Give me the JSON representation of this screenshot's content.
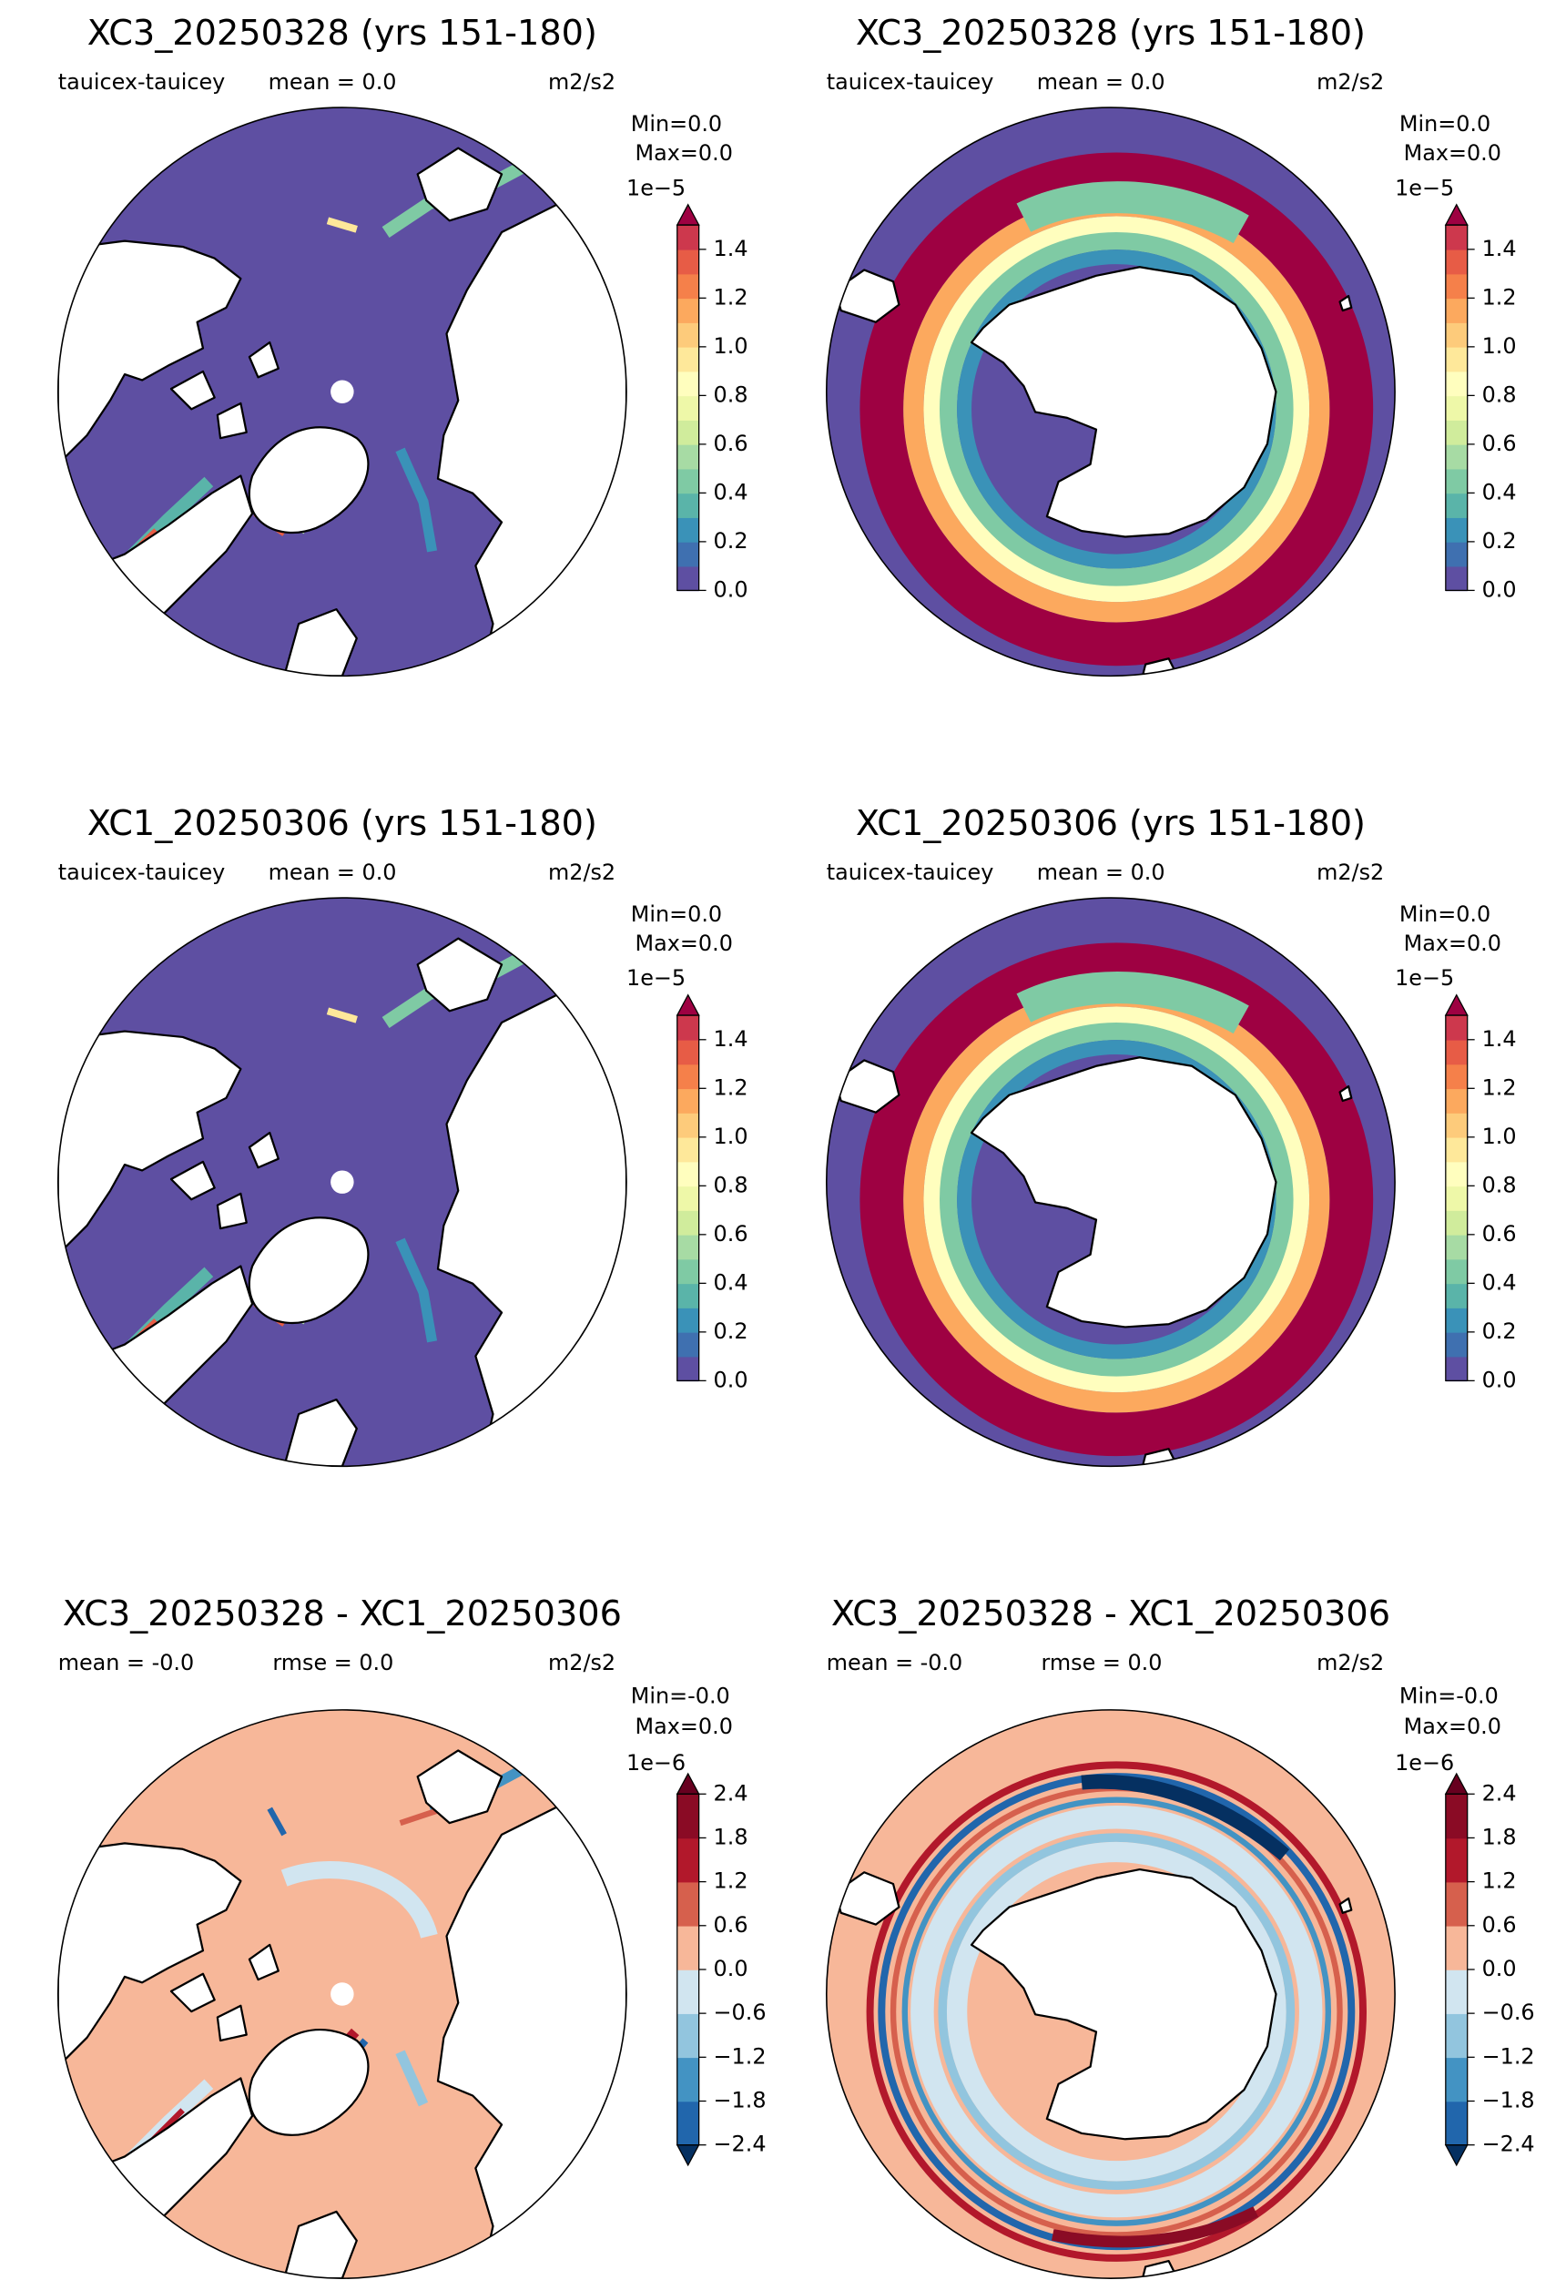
{
  "panels": [
    {
      "title": "XC3_20250328 (yrs 151-180)",
      "variable": "tauicex-tauicey",
      "stats": [
        "mean = 0.0"
      ],
      "units": "m2/s2",
      "min_text": "Min=0.0",
      "max_text": "Max=0.0",
      "map": "north",
      "style": "field",
      "colorbar": {
        "offset_label": "1e−5",
        "ylim": [
          0,
          1.5
        ],
        "yticks": [
          {
            "value": 0,
            "label": "0.0"
          },
          0.2,
          0.4,
          0.6,
          0.8,
          {
            "value": 1,
            "label": "1.0"
          },
          1.2,
          1.4
        ],
        "colors": [
          "#5e4fa2",
          "#3f70b0",
          "#3a92b8",
          "#5ab4a9",
          "#7fcaa4",
          "#a7dba4",
          "#d0ec9c",
          "#eef8a8",
          "#fffebe",
          "#fee89a",
          "#fdcb7b",
          "#fca95e",
          "#f5804a",
          "#e75c46",
          "#cd384d"
        ],
        "extend": "max",
        "over_color": "#9e0142"
      }
    },
    {
      "title": "XC3_20250328 (yrs 151-180)",
      "variable": "tauicex-tauicey",
      "stats": [
        "mean = 0.0"
      ],
      "units": "m2/s2",
      "min_text": "Min=0.0",
      "max_text": "Max=0.0",
      "map": "south",
      "style": "field",
      "colorbar": {
        "offset_label": "1e−5",
        "ylim": [
          0,
          1.5
        ],
        "yticks": [
          {
            "value": 0,
            "label": "0.0"
          },
          0.2,
          0.4,
          0.6,
          0.8,
          {
            "value": 1,
            "label": "1.0"
          },
          1.2,
          1.4
        ],
        "colors": [
          "#5e4fa2",
          "#3f70b0",
          "#3a92b8",
          "#5ab4a9",
          "#7fcaa4",
          "#a7dba4",
          "#d0ec9c",
          "#eef8a8",
          "#fffebe",
          "#fee89a",
          "#fdcb7b",
          "#fca95e",
          "#f5804a",
          "#e75c46",
          "#cd384d"
        ],
        "extend": "max",
        "over_color": "#9e0142"
      }
    },
    {
      "title": "XC1_20250306 (yrs 151-180)",
      "variable": "tauicex-tauicey",
      "stats": [
        "mean = 0.0"
      ],
      "units": "m2/s2",
      "min_text": "Min=0.0",
      "max_text": "Max=0.0",
      "map": "north",
      "style": "field",
      "colorbar": {
        "offset_label": "1e−5",
        "ylim": [
          0,
          1.5
        ],
        "yticks": [
          {
            "value": 0,
            "label": "0.0"
          },
          0.2,
          0.4,
          0.6,
          0.8,
          {
            "value": 1,
            "label": "1.0"
          },
          1.2,
          1.4
        ],
        "colors": [
          "#5e4fa2",
          "#3f70b0",
          "#3a92b8",
          "#5ab4a9",
          "#7fcaa4",
          "#a7dba4",
          "#d0ec9c",
          "#eef8a8",
          "#fffebe",
          "#fee89a",
          "#fdcb7b",
          "#fca95e",
          "#f5804a",
          "#e75c46",
          "#cd384d"
        ],
        "extend": "max",
        "over_color": "#9e0142"
      }
    },
    {
      "title": "XC1_20250306 (yrs 151-180)",
      "variable": "tauicex-tauicey",
      "stats": [
        "mean = 0.0"
      ],
      "units": "m2/s2",
      "min_text": "Min=0.0",
      "max_text": "Max=0.0",
      "map": "south",
      "style": "field",
      "colorbar": {
        "offset_label": "1e−5",
        "ylim": [
          0,
          1.5
        ],
        "yticks": [
          {
            "value": 0,
            "label": "0.0"
          },
          0.2,
          0.4,
          0.6,
          0.8,
          {
            "value": 1,
            "label": "1.0"
          },
          1.2,
          1.4
        ],
        "colors": [
          "#5e4fa2",
          "#3f70b0",
          "#3a92b8",
          "#5ab4a9",
          "#7fcaa4",
          "#a7dba4",
          "#d0ec9c",
          "#eef8a8",
          "#fffebe",
          "#fee89a",
          "#fdcb7b",
          "#fca95e",
          "#f5804a",
          "#e75c46",
          "#cd384d"
        ],
        "extend": "max",
        "over_color": "#9e0142"
      }
    },
    {
      "title": "XC3_20250328 - XC1_20250306",
      "stats": [
        "mean = -0.0",
        "rmse = 0.0"
      ],
      "units": "m2/s2",
      "min_text": "Min=-0.0",
      "max_text": "Max=0.0",
      "map": "north",
      "style": "difference",
      "colorbar": {
        "offset_label": "1e−6",
        "ylim": [
          -2.4,
          2.4
        ],
        "yticks": [
          {
            "value": -2.4,
            "label": "−2.4"
          },
          {
            "value": -1.8,
            "label": "−1.8"
          },
          {
            "value": -1.2,
            "label": "−1.2"
          },
          {
            "value": -0.6,
            "label": "−0.6"
          },
          {
            "value": 0,
            "label": "0.0"
          },
          0.6,
          1.2,
          1.8,
          2.4
        ],
        "colors": [
          "#2166ac",
          "#4393c3",
          "#92c5de",
          "#d1e5f0",
          "#f7b799",
          "#d6604d",
          "#b2182b",
          "#8a0b25"
        ],
        "extend": "both",
        "over_color": "#67001f",
        "under_color": "#053061"
      }
    },
    {
      "title": "XC3_20250328 - XC1_20250306",
      "stats": [
        "mean = -0.0",
        "rmse = 0.0"
      ],
      "units": "m2/s2",
      "min_text": "Min=-0.0",
      "max_text": "Max=0.0",
      "map": "south",
      "style": "difference",
      "colorbar": {
        "offset_label": "1e−6",
        "ylim": [
          -2.4,
          2.4
        ],
        "yticks": [
          {
            "value": -2.4,
            "label": "−2.4"
          },
          {
            "value": -1.8,
            "label": "−1.8"
          },
          {
            "value": -1.2,
            "label": "−1.2"
          },
          {
            "value": -0.6,
            "label": "−0.6"
          },
          {
            "value": 0,
            "label": "0.0"
          },
          0.6,
          1.2,
          1.8,
          2.4
        ],
        "colors": [
          "#2166ac",
          "#4393c3",
          "#92c5de",
          "#d1e5f0",
          "#f7b799",
          "#d6604d",
          "#b2182b",
          "#8a0b25"
        ],
        "extend": "both",
        "over_color": "#67001f",
        "under_color": "#053061"
      }
    }
  ]
}
